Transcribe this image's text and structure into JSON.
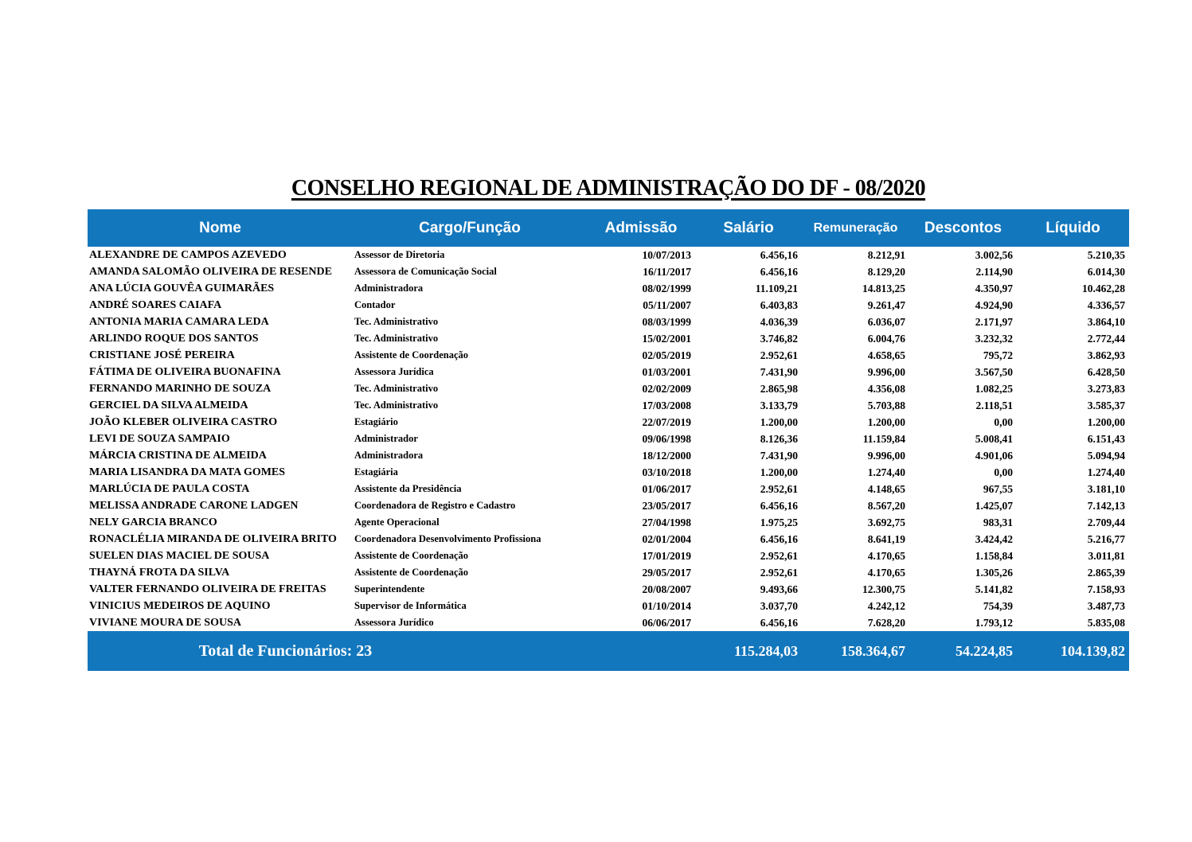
{
  "title": "CONSELHO REGIONAL DE ADMINISTRAÇÃO DO DF - 08/2020",
  "colors": {
    "header_bg": "#1377BD",
    "header_text": "#FFFFFF",
    "body_text": "#000000",
    "page_bg": "#FFFFFF"
  },
  "table": {
    "columns": [
      "Nome",
      "Cargo/Função",
      "Admissão",
      "Salário",
      "Remuneração",
      "Descontos",
      "Líquido"
    ],
    "rows": [
      [
        "ALEXANDRE DE CAMPOS AZEVEDO",
        "Assessor de Diretoria",
        "10/07/2013",
        "6.456,16",
        "8.212,91",
        "3.002,56",
        "5.210,35"
      ],
      [
        "AMANDA SALOMÃO OLIVEIRA DE RESENDE",
        "Assessora de Comunicação Social",
        "16/11/2017",
        "6.456,16",
        "8.129,20",
        "2.114,90",
        "6.014,30"
      ],
      [
        "ANA LÚCIA GOUVÊA GUIMARÃES",
        "Administradora",
        "08/02/1999",
        "11.109,21",
        "14.813,25",
        "4.350,97",
        "10.462,28"
      ],
      [
        "ANDRÉ SOARES CAIAFA",
        "Contador",
        "05/11/2007",
        "6.403,83",
        "9.261,47",
        "4.924,90",
        "4.336,57"
      ],
      [
        "ANTONIA MARIA CAMARA LEDA",
        "Tec. Administrativo",
        "08/03/1999",
        "4.036,39",
        "6.036,07",
        "2.171,97",
        "3.864,10"
      ],
      [
        "ARLINDO ROQUE DOS SANTOS",
        "Tec. Administrativo",
        "15/02/2001",
        "3.746,82",
        "6.004,76",
        "3.232,32",
        "2.772,44"
      ],
      [
        "CRISTIANE JOSÉ PEREIRA",
        "Assistente de Coordenação",
        "02/05/2019",
        "2.952,61",
        "4.658,65",
        "795,72",
        "3.862,93"
      ],
      [
        "FÁTIMA DE OLIVEIRA BUONAFINA",
        "Assessora Jurídica",
        "01/03/2001",
        "7.431,90",
        "9.996,00",
        "3.567,50",
        "6.428,50"
      ],
      [
        "FERNANDO MARINHO DE SOUZA",
        "Tec. Administrativo",
        "02/02/2009",
        "2.865,98",
        "4.356,08",
        "1.082,25",
        "3.273,83"
      ],
      [
        "GERCIEL DA SILVA ALMEIDA",
        "Tec. Administrativo",
        "17/03/2008",
        "3.133,79",
        "5.703,88",
        "2.118,51",
        "3.585,37"
      ],
      [
        "JOÃO KLEBER OLIVEIRA CASTRO",
        "Estagiário",
        "22/07/2019",
        "1.200,00",
        "1.200,00",
        "0,00",
        "1.200,00"
      ],
      [
        "LEVI DE SOUZA SAMPAIO",
        "Administrador",
        "09/06/1998",
        "8.126,36",
        "11.159,84",
        "5.008,41",
        "6.151,43"
      ],
      [
        "MÁRCIA CRISTINA DE ALMEIDA",
        "Administradora",
        "18/12/2000",
        "7.431,90",
        "9.996,00",
        "4.901,06",
        "5.094,94"
      ],
      [
        "MARIA LISANDRA DA MATA GOMES",
        "Estagiária",
        "03/10/2018",
        "1.200,00",
        "1.274,40",
        "0,00",
        "1.274,40"
      ],
      [
        "MARLÚCIA DE PAULA COSTA",
        "Assistente da Presidência",
        "01/06/2017",
        "2.952,61",
        "4.148,65",
        "967,55",
        "3.181,10"
      ],
      [
        "MELISSA ANDRADE CARONE LADGEN",
        "Coordenadora de Registro e Cadastro",
        "23/05/2017",
        "6.456,16",
        "8.567,20",
        "1.425,07",
        "7.142,13"
      ],
      [
        "NELY GARCIA BRANCO",
        "Agente Operacional",
        "27/04/1998",
        "1.975,25",
        "3.692,75",
        "983,31",
        "2.709,44"
      ],
      [
        "RONACLÉLIA MIRANDA DE OLIVEIRA BRITO",
        "Coordenadora Desenvolvimento Profissiona",
        "02/01/2004",
        "6.456,16",
        "8.641,19",
        "3.424,42",
        "5.216,77"
      ],
      [
        "SUELEN DIAS MACIEL DE SOUSA",
        "Assistente de Coordenação",
        "17/01/2019",
        "2.952,61",
        "4.170,65",
        "1.158,84",
        "3.011,81"
      ],
      [
        "THAYNÁ FROTA DA SILVA",
        "Assistente de Coordenação",
        "29/05/2017",
        "2.952,61",
        "4.170,65",
        "1.305,26",
        "2.865,39"
      ],
      [
        "VALTER FERNANDO OLIVEIRA DE FREITAS",
        "Superintendente",
        "20/08/2007",
        "9.493,66",
        "12.300,75",
        "5.141,82",
        "7.158,93"
      ],
      [
        "VINICIUS MEDEIROS DE AQUINO",
        "Supervisor de Informática",
        "01/10/2014",
        "3.037,70",
        "4.242,12",
        "754,39",
        "3.487,73"
      ],
      [
        "VIVIANE MOURA DE SOUSA",
        "Assessora Jurídico",
        "06/06/2017",
        "6.456,16",
        "7.628,20",
        "1.793,12",
        "5.835,08"
      ]
    ],
    "total": {
      "label": "Total de Funcionários: 23",
      "salario": "115.284,03",
      "remuneracao": "158.364,67",
      "descontos": "54.224,85",
      "liquido": "104.139,82"
    }
  }
}
